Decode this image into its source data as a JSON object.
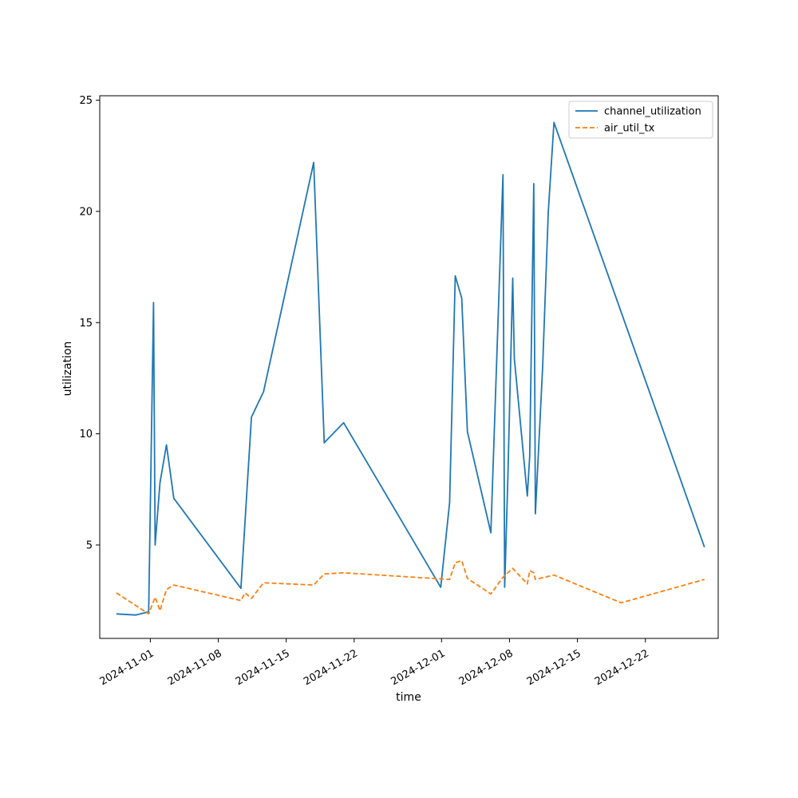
{
  "chart_data": {
    "type": "line",
    "title": "",
    "xlabel": "time",
    "ylabel": "utilization",
    "xlim": [
      "2024-10-26T19:00",
      "2024-12-29T12:00"
    ],
    "ylim": [
      0.8,
      25.2
    ],
    "x_ticks": [
      "2024-11-01",
      "2024-11-08",
      "2024-11-15",
      "2024-11-22",
      "2024-12-01",
      "2024-12-08",
      "2024-12-15",
      "2024-12-22"
    ],
    "y_ticks": [
      5,
      10,
      15,
      20,
      25
    ],
    "grid": false,
    "legend_position": "top-right",
    "series": [
      {
        "name": "channel_utilization",
        "color": "#1f77b4",
        "dash": "solid",
        "points": [
          [
            "2024-10-28T12:00",
            1.9
          ],
          [
            "2024-10-30T12:00",
            1.85
          ],
          [
            "2024-10-31T20:00",
            2.0
          ],
          [
            "2024-11-01T08:00",
            15.9
          ],
          [
            "2024-11-01T12:00",
            5.0
          ],
          [
            "2024-11-02T00:00",
            7.8
          ],
          [
            "2024-11-02T16:00",
            9.5
          ],
          [
            "2024-11-03T10:00",
            7.1
          ],
          [
            "2024-11-10T08:00",
            3.05
          ],
          [
            "2024-11-11T10:00",
            10.75
          ],
          [
            "2024-11-12T16:00",
            11.9
          ],
          [
            "2024-11-17T20:00",
            22.2
          ],
          [
            "2024-11-18T22:00",
            9.6
          ],
          [
            "2024-11-20T22:00",
            10.5
          ],
          [
            "2024-11-30T22:00",
            3.1
          ],
          [
            "2024-12-01T20:00",
            6.9
          ],
          [
            "2024-12-02T10:00",
            17.1
          ],
          [
            "2024-12-03T02:00",
            16.1
          ],
          [
            "2024-12-03T16:00",
            10.1
          ],
          [
            "2024-12-06T02:00",
            5.55
          ],
          [
            "2024-12-07T08:00",
            21.65
          ],
          [
            "2024-12-07T12:00",
            3.1
          ],
          [
            "2024-12-07T20:00",
            8.0
          ],
          [
            "2024-12-08T08:00",
            17.0
          ],
          [
            "2024-12-08T12:00",
            13.4
          ],
          [
            "2024-12-09T20:00",
            7.2
          ],
          [
            "2024-12-10T02:00",
            9.0
          ],
          [
            "2024-12-10T12:00",
            21.25
          ],
          [
            "2024-12-10T16:00",
            6.4
          ],
          [
            "2024-12-11T10:00",
            13.0
          ],
          [
            "2024-12-12T00:00",
            20.0
          ],
          [
            "2024-12-12T14:00",
            24.0
          ],
          [
            "2024-12-28T02:00",
            4.9
          ]
        ]
      },
      {
        "name": "air_util_tx",
        "color": "#ff7f0e",
        "dash": "dashed",
        "points": [
          [
            "2024-10-28T12:00",
            2.85
          ],
          [
            "2024-10-31T20:00",
            1.9
          ],
          [
            "2024-11-01T12:00",
            2.65
          ],
          [
            "2024-11-02T00:00",
            2.05
          ],
          [
            "2024-11-02T16:00",
            3.0
          ],
          [
            "2024-11-03T10:00",
            3.2
          ],
          [
            "2024-11-10T08:00",
            2.5
          ],
          [
            "2024-11-10T18:00",
            2.85
          ],
          [
            "2024-11-11T10:00",
            2.6
          ],
          [
            "2024-11-12T16:00",
            3.3
          ],
          [
            "2024-11-17T20:00",
            3.2
          ],
          [
            "2024-11-18T22:00",
            3.7
          ],
          [
            "2024-11-20T22:00",
            3.75
          ],
          [
            "2024-12-01T20:00",
            3.45
          ],
          [
            "2024-12-02T10:00",
            4.2
          ],
          [
            "2024-12-03T02:00",
            4.3
          ],
          [
            "2024-12-03T16:00",
            3.5
          ],
          [
            "2024-12-06T02:00",
            2.8
          ],
          [
            "2024-12-07T08:00",
            3.55
          ],
          [
            "2024-12-08T08:00",
            3.95
          ],
          [
            "2024-12-09T20:00",
            3.25
          ],
          [
            "2024-12-10T02:00",
            3.85
          ],
          [
            "2024-12-10T12:00",
            3.75
          ],
          [
            "2024-12-10T16:00",
            3.45
          ],
          [
            "2024-12-12T14:00",
            3.65
          ],
          [
            "2024-12-19T12:00",
            2.4
          ],
          [
            "2024-12-28T02:00",
            3.45
          ]
        ]
      }
    ]
  }
}
